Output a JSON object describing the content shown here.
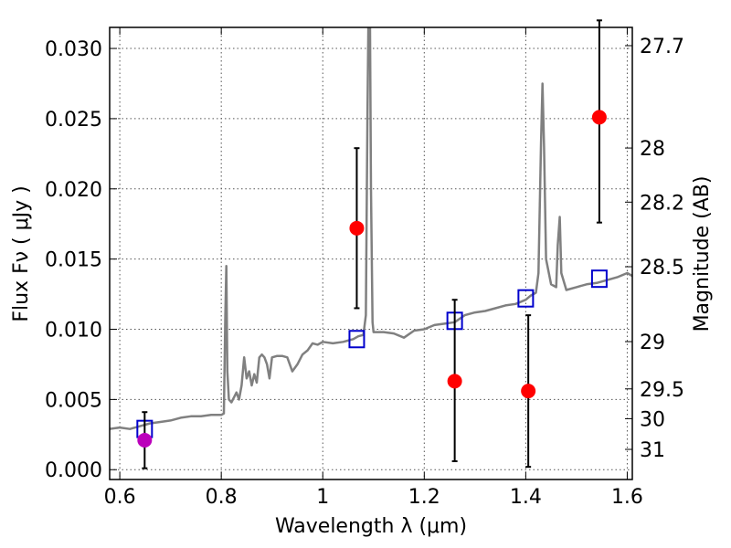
{
  "chart_data": {
    "type": "scatter",
    "xlabel": "Wavelength  λ (μm)",
    "ylabel": "Flux  Fν  ( μJy )",
    "ylabel_right": "Magnitude (AB)",
    "xlim": [
      0.58,
      1.61
    ],
    "ylim": [
      -0.0007,
      0.0315
    ],
    "grid": true,
    "x_ticks": [
      0.6,
      0.8,
      1.0,
      1.2,
      1.4,
      1.6
    ],
    "x_tick_labels": [
      "0.6",
      "0.8",
      "1",
      "1.2",
      "1.4",
      "1.6"
    ],
    "y_ticks": [
      0.0,
      0.005,
      0.01,
      0.015,
      0.02,
      0.025,
      0.03
    ],
    "y_tick_labels": [
      "0.000",
      "0.005",
      "0.010",
      "0.015",
      "0.020",
      "0.025",
      "0.030"
    ],
    "right_ticks": [
      {
        "mag": 27.7,
        "label": "27.7"
      },
      {
        "mag": 28.0,
        "label": "28"
      },
      {
        "mag": 28.2,
        "label": "28.2"
      },
      {
        "mag": 28.5,
        "label": "28.5"
      },
      {
        "mag": 29.0,
        "label": "29"
      },
      {
        "mag": 29.5,
        "label": "29.5"
      },
      {
        "mag": 30.0,
        "label": "30"
      },
      {
        "mag": 31.0,
        "label": "31"
      }
    ],
    "series": [
      {
        "kind": "line",
        "color": "#808080",
        "points": [
          [
            0.58,
            0.0029
          ],
          [
            0.6,
            0.003
          ],
          [
            0.62,
            0.0029
          ],
          [
            0.64,
            0.0031
          ],
          [
            0.66,
            0.0033
          ],
          [
            0.68,
            0.0034
          ],
          [
            0.7,
            0.0035
          ],
          [
            0.72,
            0.0037
          ],
          [
            0.74,
            0.0038
          ],
          [
            0.76,
            0.0038
          ],
          [
            0.78,
            0.0039
          ],
          [
            0.8,
            0.0039
          ],
          [
            0.805,
            0.004
          ],
          [
            0.808,
            0.011
          ],
          [
            0.81,
            0.0145
          ],
          [
            0.812,
            0.007
          ],
          [
            0.815,
            0.005
          ],
          [
            0.82,
            0.0048
          ],
          [
            0.83,
            0.0055
          ],
          [
            0.835,
            0.005
          ],
          [
            0.84,
            0.006
          ],
          [
            0.845,
            0.008
          ],
          [
            0.85,
            0.0065
          ],
          [
            0.855,
            0.007
          ],
          [
            0.86,
            0.006
          ],
          [
            0.865,
            0.0068
          ],
          [
            0.87,
            0.0062
          ],
          [
            0.875,
            0.008
          ],
          [
            0.88,
            0.0082
          ],
          [
            0.885,
            0.008
          ],
          [
            0.89,
            0.0075
          ],
          [
            0.895,
            0.0065
          ],
          [
            0.9,
            0.008
          ],
          [
            0.91,
            0.0081
          ],
          [
            0.92,
            0.0081
          ],
          [
            0.93,
            0.008
          ],
          [
            0.94,
            0.007
          ],
          [
            0.95,
            0.0075
          ],
          [
            0.96,
            0.0082
          ],
          [
            0.97,
            0.0085
          ],
          [
            0.98,
            0.009
          ],
          [
            0.99,
            0.0089
          ],
          [
            1.0,
            0.0091
          ],
          [
            1.02,
            0.009
          ],
          [
            1.04,
            0.0091
          ],
          [
            1.06,
            0.0093
          ],
          [
            1.07,
            0.0095
          ],
          [
            1.08,
            0.0096
          ],
          [
            1.085,
            0.011
          ],
          [
            1.088,
            0.025
          ],
          [
            1.09,
            0.032
          ],
          [
            1.093,
            0.032
          ],
          [
            1.095,
            0.02
          ],
          [
            1.098,
            0.0105
          ],
          [
            1.1,
            0.0098
          ],
          [
            1.12,
            0.0098
          ],
          [
            1.14,
            0.0097
          ],
          [
            1.16,
            0.0094
          ],
          [
            1.18,
            0.0099
          ],
          [
            1.2,
            0.01
          ],
          [
            1.22,
            0.0103
          ],
          [
            1.24,
            0.0104
          ],
          [
            1.26,
            0.0105
          ],
          [
            1.28,
            0.011
          ],
          [
            1.3,
            0.0112
          ],
          [
            1.32,
            0.0113
          ],
          [
            1.34,
            0.0115
          ],
          [
            1.36,
            0.0117
          ],
          [
            1.38,
            0.0118
          ],
          [
            1.4,
            0.0121
          ],
          [
            1.41,
            0.0124
          ],
          [
            1.42,
            0.0126
          ],
          [
            1.425,
            0.014
          ],
          [
            1.43,
            0.023
          ],
          [
            1.433,
            0.0275
          ],
          [
            1.436,
            0.023
          ],
          [
            1.44,
            0.015
          ],
          [
            1.45,
            0.0132
          ],
          [
            1.46,
            0.013
          ],
          [
            1.463,
            0.016
          ],
          [
            1.467,
            0.018
          ],
          [
            1.47,
            0.014
          ],
          [
            1.48,
            0.0128
          ],
          [
            1.5,
            0.013
          ],
          [
            1.52,
            0.0132
          ],
          [
            1.54,
            0.0133
          ],
          [
            1.56,
            0.0135
          ],
          [
            1.58,
            0.0137
          ],
          [
            1.6,
            0.014
          ],
          [
            1.61,
            0.0138
          ]
        ]
      },
      {
        "kind": "squares",
        "color": "#0000cc",
        "points": [
          [
            0.649,
            0.0029
          ],
          [
            1.067,
            0.0093
          ],
          [
            1.26,
            0.0106
          ],
          [
            1.4,
            0.0122
          ],
          [
            1.545,
            0.0136
          ]
        ]
      },
      {
        "kind": "errorbar-points",
        "color": "#ff0000",
        "points": [
          {
            "x": 1.067,
            "y": 0.0172,
            "yerr": [
              0.0115,
              0.0229
            ]
          },
          {
            "x": 1.26,
            "y": 0.0063,
            "yerr": [
              0.0006,
              0.0121
            ]
          },
          {
            "x": 1.405,
            "y": 0.0056,
            "yerr": [
              0.0002,
              0.011
            ]
          },
          {
            "x": 1.545,
            "y": 0.0251,
            "yerr": [
              0.0176,
              0.032
            ]
          }
        ]
      },
      {
        "kind": "errorbar-points",
        "color": "#bb00bb",
        "points": [
          {
            "x": 0.649,
            "y": 0.0021,
            "yerr": [
              0.0001,
              0.0041
            ]
          }
        ]
      }
    ]
  }
}
